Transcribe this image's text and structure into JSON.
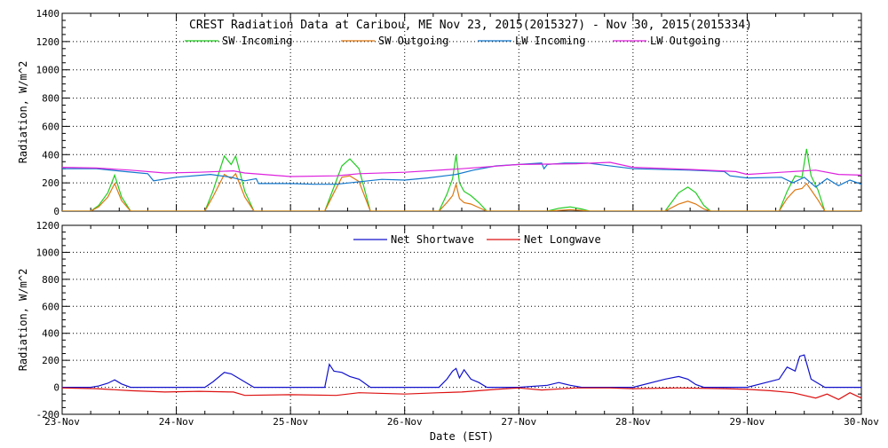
{
  "chart_data": [
    {
      "type": "line",
      "title": "CREST Radiation Data at Caribou, ME   Nov 23, 2015(2015327) - Nov 30, 2015(2015334)",
      "ylabel": "Radiation, W/m^2",
      "xlabel": "",
      "x_range": [
        0,
        7
      ],
      "ylim": [
        0,
        1400
      ],
      "y_ticks": [
        0,
        200,
        400,
        600,
        800,
        1000,
        1200,
        1400
      ],
      "x_tick_labels": [],
      "grid": true,
      "legend_position": "top",
      "series": [
        {
          "name": "SW Incoming",
          "color": "#22cc22",
          "x": [
            0.0,
            0.25,
            0.32,
            0.4,
            0.46,
            0.52,
            0.6,
            1.0,
            1.25,
            1.32,
            1.42,
            1.48,
            1.52,
            1.6,
            1.68,
            2.0,
            2.3,
            2.38,
            2.45,
            2.52,
            2.6,
            2.7,
            3.0,
            3.3,
            3.37,
            3.42,
            3.45,
            3.48,
            3.52,
            3.58,
            3.65,
            3.72,
            4.0,
            4.25,
            4.35,
            4.45,
            4.55,
            4.62,
            5.0,
            5.28,
            5.4,
            5.48,
            5.55,
            5.62,
            5.68,
            6.0,
            6.28,
            6.35,
            6.42,
            6.48,
            6.52,
            6.56,
            6.62,
            6.68,
            7.0
          ],
          "y": [
            0,
            0,
            40,
            130,
            255,
            100,
            0,
            0,
            0,
            140,
            390,
            330,
            390,
            140,
            0,
            0,
            0,
            170,
            320,
            370,
            300,
            0,
            0,
            0,
            120,
            230,
            400,
            200,
            140,
            110,
            60,
            0,
            0,
            0,
            20,
            30,
            15,
            0,
            0,
            0,
            130,
            170,
            130,
            40,
            0,
            0,
            0,
            140,
            250,
            240,
            440,
            250,
            150,
            0,
            0
          ]
        },
        {
          "name": "SW Outgoing",
          "color": "#dd7711",
          "x": [
            0.0,
            0.25,
            0.32,
            0.4,
            0.46,
            0.52,
            0.6,
            1.0,
            1.25,
            1.32,
            1.42,
            1.48,
            1.52,
            1.6,
            1.68,
            2.0,
            2.3,
            2.38,
            2.45,
            2.52,
            2.6,
            2.7,
            3.0,
            3.3,
            3.37,
            3.42,
            3.45,
            3.48,
            3.52,
            3.58,
            3.65,
            3.72,
            4.0,
            4.25,
            4.35,
            4.45,
            4.55,
            4.62,
            5.0,
            5.28,
            5.4,
            5.48,
            5.55,
            5.62,
            5.68,
            6.0,
            6.28,
            6.35,
            6.42,
            6.48,
            6.52,
            6.56,
            6.62,
            6.68,
            7.0
          ],
          "y": [
            0,
            0,
            30,
            100,
            195,
            75,
            0,
            0,
            0,
            100,
            260,
            230,
            265,
            100,
            0,
            0,
            0,
            130,
            240,
            250,
            210,
            0,
            0,
            0,
            60,
            110,
            190,
            90,
            60,
            50,
            25,
            0,
            0,
            0,
            5,
            10,
            5,
            0,
            0,
            0,
            50,
            70,
            50,
            15,
            0,
            0,
            0,
            90,
            150,
            160,
            195,
            150,
            80,
            0,
            0
          ]
        },
        {
          "name": "LW Incoming",
          "color": "#1177cc",
          "x": [
            0.0,
            0.3,
            0.55,
            0.75,
            0.8,
            1.0,
            1.3,
            1.48,
            1.6,
            1.7,
            1.72,
            2.0,
            2.2,
            2.4,
            2.8,
            3.0,
            3.2,
            3.45,
            3.6,
            3.8,
            4.0,
            4.2,
            4.22,
            4.25,
            4.4,
            4.6,
            5.0,
            5.5,
            5.8,
            5.85,
            6.0,
            6.3,
            6.4,
            6.5,
            6.6,
            6.7,
            6.8,
            6.9,
            7.0
          ],
          "y": [
            300,
            300,
            280,
            265,
            215,
            240,
            260,
            240,
            215,
            230,
            195,
            195,
            190,
            190,
            225,
            220,
            235,
            260,
            290,
            320,
            330,
            340,
            300,
            330,
            340,
            340,
            300,
            290,
            280,
            250,
            235,
            240,
            200,
            240,
            170,
            230,
            180,
            220,
            190
          ]
        },
        {
          "name": "LW Outgoing",
          "color": "#dd22dd",
          "x": [
            0.0,
            0.3,
            0.6,
            0.9,
            1.2,
            1.5,
            1.6,
            2.0,
            2.4,
            2.6,
            3.0,
            3.5,
            4.0,
            4.5,
            4.8,
            5.0,
            5.5,
            5.9,
            6.0,
            6.3,
            6.6,
            6.8,
            7.0
          ],
          "y": [
            310,
            305,
            290,
            270,
            275,
            285,
            270,
            245,
            250,
            265,
            275,
            300,
            330,
            335,
            345,
            310,
            295,
            280,
            260,
            275,
            290,
            260,
            255
          ]
        }
      ]
    },
    {
      "type": "line",
      "title": "",
      "ylabel": "Radiation, W/m^2",
      "xlabel": "Date (EST)",
      "x_range": [
        0,
        7
      ],
      "ylim": [
        -200,
        1200
      ],
      "y_ticks": [
        -200,
        0,
        200,
        400,
        600,
        800,
        1000,
        1200
      ],
      "x_tick_labels": [
        "23-Nov",
        "24-Nov",
        "25-Nov",
        "26-Nov",
        "27-Nov",
        "28-Nov",
        "29-Nov",
        "30-Nov"
      ],
      "grid": true,
      "legend_position": "top",
      "series": [
        {
          "name": "Net Shortwave",
          "color": "#1111cc",
          "x": [
            0.0,
            0.25,
            0.32,
            0.4,
            0.46,
            0.52,
            0.6,
            1.0,
            1.25,
            1.32,
            1.42,
            1.48,
            1.52,
            1.6,
            1.68,
            2.0,
            2.3,
            2.34,
            2.38,
            2.45,
            2.52,
            2.6,
            2.7,
            3.0,
            3.3,
            3.37,
            3.42,
            3.45,
            3.48,
            3.52,
            3.58,
            3.65,
            3.72,
            4.0,
            4.25,
            4.35,
            4.45,
            4.55,
            4.62,
            5.0,
            5.28,
            5.4,
            5.48,
            5.55,
            5.62,
            5.68,
            6.0,
            6.28,
            6.35,
            6.42,
            6.46,
            6.5,
            6.53,
            6.56,
            6.62,
            6.68,
            7.0
          ],
          "y": [
            0,
            0,
            10,
            30,
            55,
            25,
            0,
            0,
            0,
            40,
            110,
            100,
            80,
            40,
            0,
            0,
            0,
            170,
            120,
            110,
            80,
            60,
            0,
            0,
            0,
            60,
            120,
            140,
            70,
            130,
            60,
            35,
            0,
            0,
            15,
            35,
            15,
            0,
            0,
            0,
            60,
            80,
            60,
            20,
            0,
            0,
            0,
            60,
            150,
            120,
            230,
            240,
            150,
            60,
            30,
            0,
            0
          ]
        },
        {
          "name": "Net Longwave",
          "color": "#dd1111",
          "x": [
            0.0,
            0.3,
            0.6,
            0.9,
            1.2,
            1.5,
            1.6,
            2.0,
            2.4,
            2.6,
            3.0,
            3.3,
            3.5,
            3.8,
            4.0,
            4.2,
            4.5,
            4.8,
            5.0,
            5.4,
            5.8,
            6.0,
            6.2,
            6.4,
            6.6,
            6.7,
            6.8,
            6.9,
            7.0
          ],
          "y": [
            -5,
            -10,
            -25,
            -35,
            -30,
            -35,
            -60,
            -55,
            -60,
            -40,
            -50,
            -40,
            -35,
            -15,
            -5,
            -20,
            -5,
            -5,
            -10,
            -5,
            -10,
            -15,
            -25,
            -40,
            -80,
            -50,
            -90,
            -40,
            -80
          ]
        }
      ]
    }
  ]
}
